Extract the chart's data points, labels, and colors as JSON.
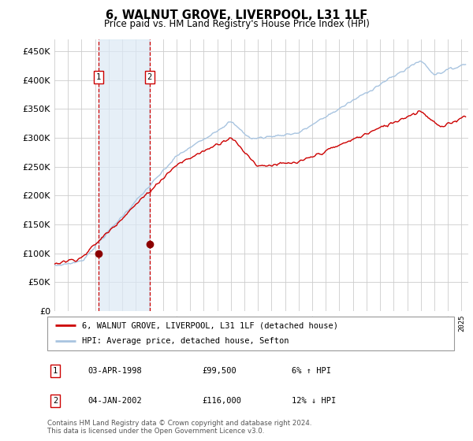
{
  "title": "6, WALNUT GROVE, LIVERPOOL, L31 1LF",
  "subtitle": "Price paid vs. HM Land Registry's House Price Index (HPI)",
  "ylim": [
    0,
    470000
  ],
  "yticks": [
    0,
    50000,
    100000,
    150000,
    200000,
    250000,
    300000,
    350000,
    400000,
    450000
  ],
  "ytick_labels": [
    "£0",
    "£50K",
    "£100K",
    "£150K",
    "£200K",
    "£250K",
    "£300K",
    "£350K",
    "£400K",
    "£450K"
  ],
  "xstart": 1995.0,
  "xend": 2025.5,
  "sale1_date": 1998.25,
  "sale1_price": 99500,
  "sale1_label": "1",
  "sale2_date": 2002.02,
  "sale2_price": 116000,
  "sale2_label": "2",
  "hpi_color": "#a8c4e0",
  "price_color": "#cc0000",
  "sale_marker_color": "#8b0000",
  "grid_color": "#cccccc",
  "background_color": "#ffffff",
  "legend_entry1": "6, WALNUT GROVE, LIVERPOOL, L31 1LF (detached house)",
  "legend_entry2": "HPI: Average price, detached house, Sefton",
  "table_row1_num": "1",
  "table_row1_date": "03-APR-1998",
  "table_row1_price": "£99,500",
  "table_row1_hpi": "6% ↑ HPI",
  "table_row2_num": "2",
  "table_row2_date": "04-JAN-2002",
  "table_row2_price": "£116,000",
  "table_row2_hpi": "12% ↓ HPI",
  "footnote1": "Contains HM Land Registry data © Crown copyright and database right 2024.",
  "footnote2": "This data is licensed under the Open Government Licence v3.0.",
  "shade_color": "#dce9f5",
  "dashed_line_color": "#cc0000"
}
